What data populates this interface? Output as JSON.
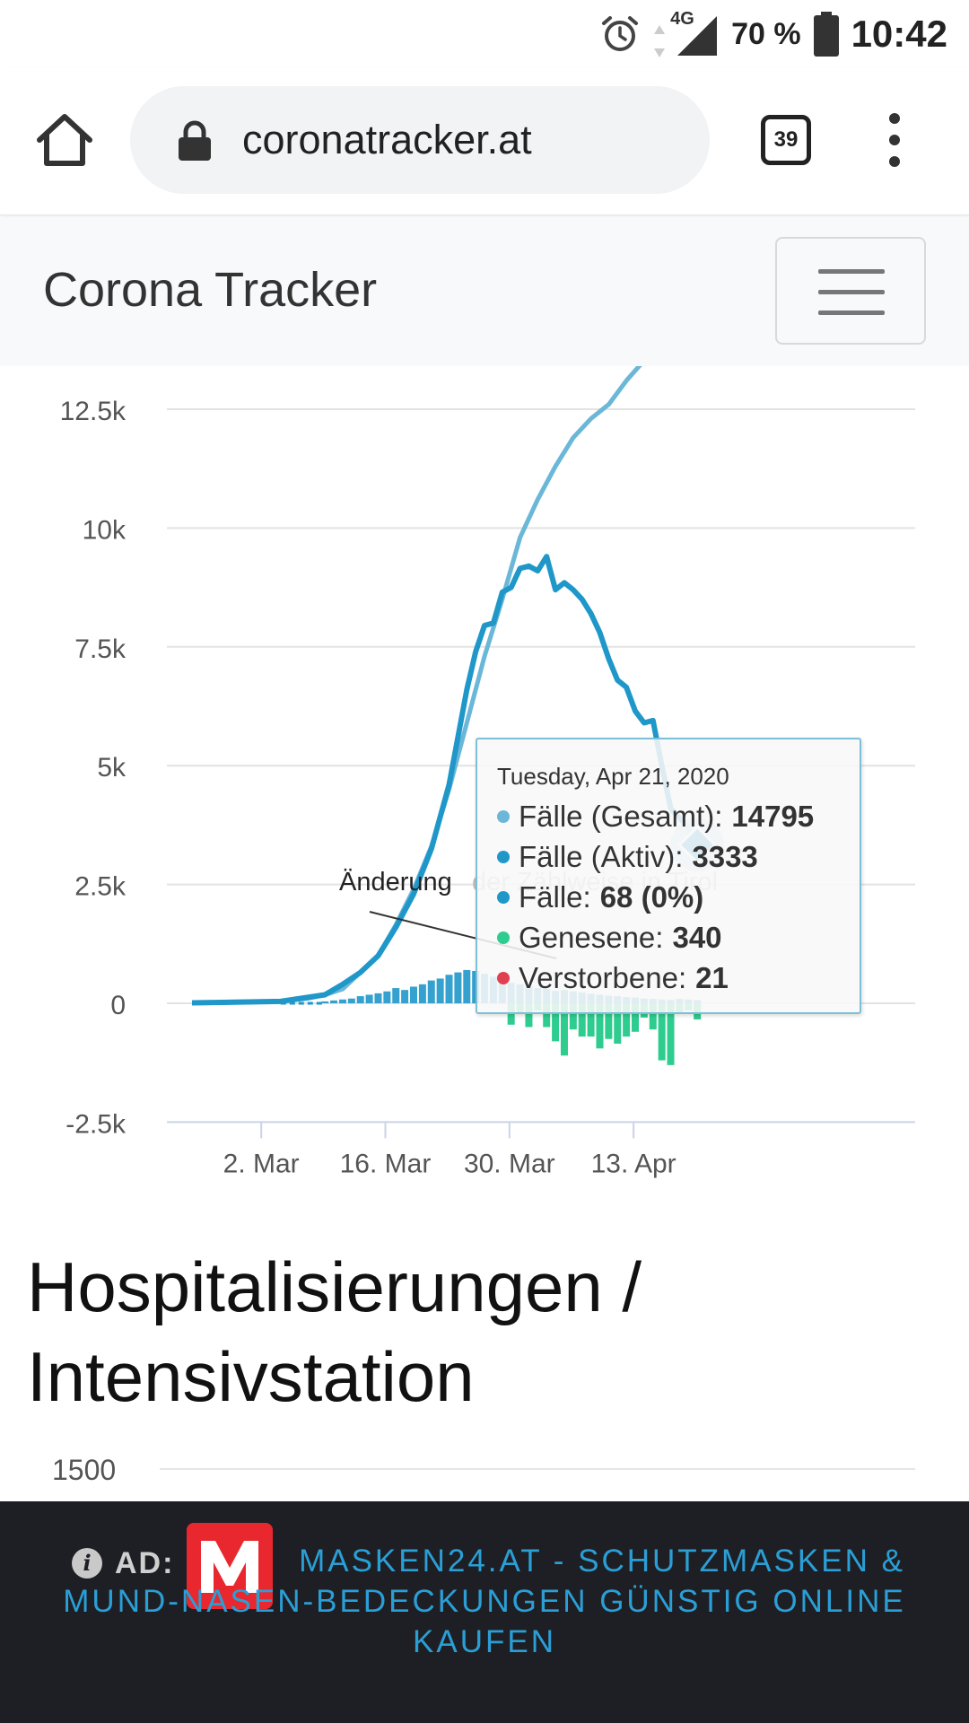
{
  "status_bar": {
    "network": "4G",
    "battery": "70 %",
    "time": "10:42",
    "icons": [
      "alarm-icon",
      "network-arrows-icon",
      "signal-icon",
      "battery-icon"
    ]
  },
  "browser": {
    "url": "coronatracker.at",
    "tab_count": "39",
    "icons": [
      "home-icon",
      "lock-icon",
      "overflow-menu-icon"
    ]
  },
  "navbar": {
    "brand": "Corona Tracker",
    "icons": [
      "hamburger-icon"
    ]
  },
  "chart_data": {
    "type": "line",
    "title": "",
    "xlabel": "",
    "ylabel": "",
    "y_ticks": [
      "12.5k",
      "10k",
      "7.5k",
      "5k",
      "2.5k",
      "0",
      "-2.5k"
    ],
    "x_ticks": [
      "2. Mar",
      "16. Mar",
      "30. Mar",
      "13. Apr"
    ],
    "ylim": [
      -2500,
      12500
    ],
    "annotation": {
      "label_dark": "Änderung",
      "label_faded": "der Zählweise in Tirol"
    },
    "colors": {
      "gesamt": "#6ab7d8",
      "aktiv": "#1f97c9",
      "faelle": "#1f97c9",
      "genesene": "#2ecc8f",
      "verstorbene": "#e04050"
    },
    "series": [
      {
        "name": "Fälle (Gesamt)",
        "x": [
          "2020-02-24",
          "2020-03-01",
          "2020-03-05",
          "2020-03-08",
          "2020-03-10",
          "2020-03-12",
          "2020-03-14",
          "2020-03-16",
          "2020-03-18",
          "2020-03-20",
          "2020-03-22",
          "2020-03-24",
          "2020-03-26",
          "2020-03-28",
          "2020-03-30",
          "2020-04-01",
          "2020-04-03",
          "2020-04-05",
          "2020-04-07",
          "2020-04-09",
          "2020-04-11",
          "2020-04-13",
          "2020-04-21"
        ],
        "values": [
          10,
          20,
          40,
          100,
          180,
          300,
          650,
          1000,
          1650,
          2400,
          3300,
          4500,
          5900,
          7300,
          8500,
          9800,
          10600,
          11300,
          11900,
          12300,
          12600,
          13100,
          14795
        ]
      },
      {
        "name": "Fälle (Aktiv)",
        "x": [
          "2020-02-24",
          "2020-03-05",
          "2020-03-10",
          "2020-03-12",
          "2020-03-14",
          "2020-03-16",
          "2020-03-18",
          "2020-03-20",
          "2020-03-22",
          "2020-03-24",
          "2020-03-26",
          "2020-03-27",
          "2020-03-28",
          "2020-03-29",
          "2020-03-30",
          "2020-03-31",
          "2020-04-01",
          "2020-04-02",
          "2020-04-03",
          "2020-04-04",
          "2020-04-05",
          "2020-04-06",
          "2020-04-07",
          "2020-04-08",
          "2020-04-09",
          "2020-04-10",
          "2020-04-11",
          "2020-04-12",
          "2020-04-13",
          "2020-04-14",
          "2020-04-15",
          "2020-04-16",
          "2020-04-17",
          "2020-04-18",
          "2020-04-19",
          "2020-04-20",
          "2020-04-21"
        ],
        "values": [
          10,
          40,
          180,
          400,
          650,
          1000,
          1600,
          2300,
          3250,
          4600,
          6600,
          7400,
          7950,
          8000,
          8650,
          8750,
          9150,
          9200,
          9100,
          9400,
          8700,
          8850,
          8700,
          8500,
          8200,
          7800,
          7250,
          6800,
          6650,
          6150,
          5900,
          5950,
          5000,
          4100,
          3900,
          3700,
          3333
        ]
      },
      {
        "name": "Fälle",
        "x": [
          "2020-03-10",
          "2020-03-11",
          "2020-03-12",
          "2020-03-13",
          "2020-03-14",
          "2020-03-15",
          "2020-03-16",
          "2020-03-17",
          "2020-03-18",
          "2020-03-19",
          "2020-03-20",
          "2020-03-21",
          "2020-03-22",
          "2020-03-23",
          "2020-03-24",
          "2020-03-25",
          "2020-03-26",
          "2020-03-27",
          "2020-03-28",
          "2020-03-29",
          "2020-03-30",
          "2020-03-31",
          "2020-04-01",
          "2020-04-02",
          "2020-04-03",
          "2020-04-04",
          "2020-04-05",
          "2020-04-06",
          "2020-04-07",
          "2020-04-08",
          "2020-04-09",
          "2020-04-10",
          "2020-04-11",
          "2020-04-12",
          "2020-04-13",
          "2020-04-14",
          "2020-04-15",
          "2020-04-16",
          "2020-04-17",
          "2020-04-18",
          "2020-04-19",
          "2020-04-20",
          "2020-04-21"
        ],
        "values": [
          40,
          60,
          80,
          100,
          150,
          180,
          210,
          250,
          320,
          280,
          350,
          400,
          480,
          520,
          600,
          650,
          700,
          680,
          620,
          560,
          500,
          430,
          400,
          350,
          320,
          300,
          260,
          280,
          250,
          230,
          200,
          180,
          160,
          150,
          130,
          120,
          100,
          90,
          80,
          70,
          90,
          80,
          68
        ]
      },
      {
        "name": "Genesene",
        "x": [
          "2020-03-31",
          "2020-04-01",
          "2020-04-02",
          "2020-04-03",
          "2020-04-04",
          "2020-04-05",
          "2020-04-06",
          "2020-04-07",
          "2020-04-08",
          "2020-04-09",
          "2020-04-10",
          "2020-04-11",
          "2020-04-12",
          "2020-04-13",
          "2020-04-14",
          "2020-04-15",
          "2020-04-16",
          "2020-04-17",
          "2020-04-18",
          "2020-04-19",
          "2020-04-20",
          "2020-04-21"
        ],
        "values": [
          -450,
          -200,
          -500,
          -150,
          -500,
          -800,
          -1100,
          -550,
          -700,
          -700,
          -950,
          -750,
          -850,
          -700,
          -600,
          -300,
          -550,
          -1200,
          -1300,
          -200,
          -150,
          -340
        ]
      }
    ],
    "tooltip": {
      "date": "Tuesday, Apr 21, 2020",
      "rows": [
        {
          "label": "Fälle (Gesamt)",
          "value": "14795",
          "color": "#6ab7d8"
        },
        {
          "label": "Fälle (Aktiv)",
          "value": "3333",
          "color": "#1f97c9"
        },
        {
          "label": "Fälle",
          "value": "68 (0%)",
          "color": "#1f97c9"
        },
        {
          "label": "Genesene",
          "value": "340",
          "color": "#2ecc8f"
        },
        {
          "label": "Verstorbene",
          "value": "21",
          "color": "#e04050"
        }
      ]
    }
  },
  "section": {
    "title_line1": "Hospitalisierungen /",
    "title_line2": "Intensivstation",
    "next_chart_top_tick": "1500"
  },
  "ad": {
    "label": "AD:",
    "text": "MASKEN24.AT - SCHUTZMASKEN & MUND-NASEN-BEDECKUNGEN GÜNSTIG ONLINE KAUFEN",
    "icons": [
      "info-icon",
      "masken24-logo"
    ]
  }
}
